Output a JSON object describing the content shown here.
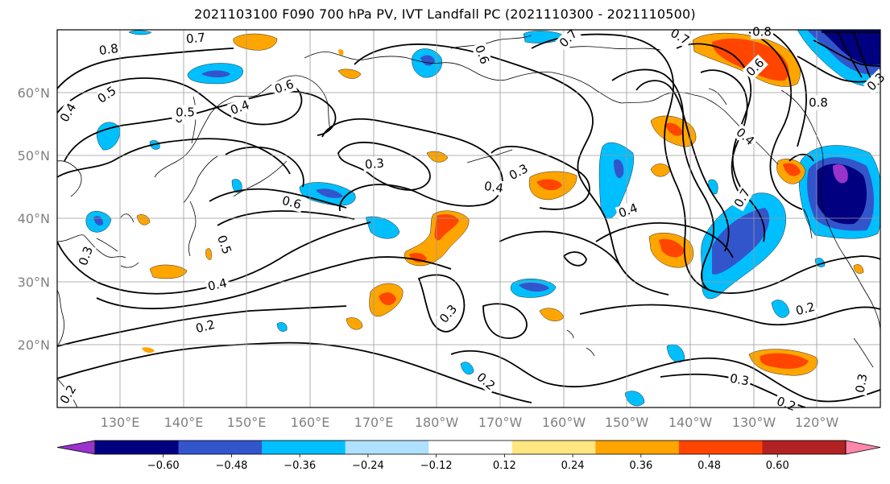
{
  "title": "2021103100 F090 700 hPa PV, IVT Landfall PC (2021110300 - 2021110500)",
  "lat_labels": [
    "60°N",
    "50°N",
    "40°N",
    "30°N",
    "20°N"
  ],
  "lon_labels": [
    "130°E",
    "140°E",
    "150°E",
    "160°E",
    "170°E",
    "180°W",
    "170°W",
    "160°W",
    "150°W",
    "140°W",
    "130°W",
    "120°W"
  ],
  "colorbar": {
    "colors": [
      "#9933cc",
      "#000080",
      "#3355cc",
      "#00bfff",
      "#b0e0ff",
      "#ffffff",
      "#ffe680",
      "#ffa500",
      "#ff4500",
      "#b22222",
      "#ff88aa"
    ],
    "tick_labels": [
      "−0.60",
      "−0.48",
      "−0.36",
      "−0.24",
      "−0.12",
      "0.12",
      "0.24",
      "0.36",
      "0.48",
      "0.60"
    ]
  },
  "contour_labels": [
    "0.8",
    "0.7",
    "0.6",
    "0.5",
    "0.4",
    "0.5",
    "0.4",
    "0.6",
    "0.3",
    "0.3",
    "0.4",
    "0.3",
    "0.4",
    "0.5",
    "0.4",
    "0.2",
    "0.3",
    "0.2",
    "0.7",
    "0.7",
    "0.8",
    "0.6",
    "0.8",
    "0.6",
    "0.7",
    "0.4",
    "0.2",
    "0.3",
    "0.2",
    "0.3",
    "0.3",
    "0.6",
    "0.2"
  ]
}
